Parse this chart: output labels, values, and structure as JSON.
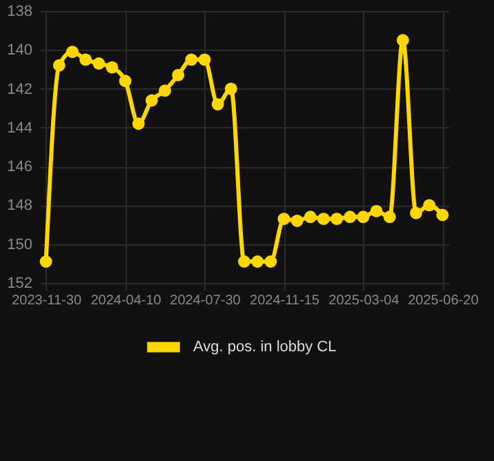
{
  "chart_data": {
    "type": "line",
    "categories": [
      "2023-11-30",
      null,
      null,
      null,
      null,
      null,
      "2024-04-10",
      null,
      null,
      null,
      null,
      null,
      "2024-07-30",
      null,
      null,
      null,
      null,
      null,
      "2024-11-15",
      null,
      null,
      null,
      null,
      null,
      "2025-03-04",
      null,
      null,
      null,
      null,
      null,
      "2025-06-20"
    ],
    "series": [
      {
        "name": "Avg. pos. in lobby CL",
        "color": "#ffd700",
        "values": [
          150.9,
          140.8,
          140.1,
          140.5,
          140.7,
          140.9,
          141.6,
          143.8,
          142.6,
          142.1,
          141.3,
          140.5,
          140.5,
          142.8,
          142.0,
          150.9,
          150.9,
          150.9,
          148.7,
          148.8,
          148.6,
          148.7,
          148.7,
          148.6,
          148.6,
          148.3,
          148.6,
          139.5,
          148.4,
          148.0,
          148.5
        ]
      }
    ],
    "ylim": [
      152,
      138
    ],
    "yticks": [
      138,
      140,
      142,
      144,
      146,
      148,
      150,
      152
    ],
    "grid": true,
    "legend": "bottom",
    "marker": "circle",
    "line_style": "solid"
  }
}
